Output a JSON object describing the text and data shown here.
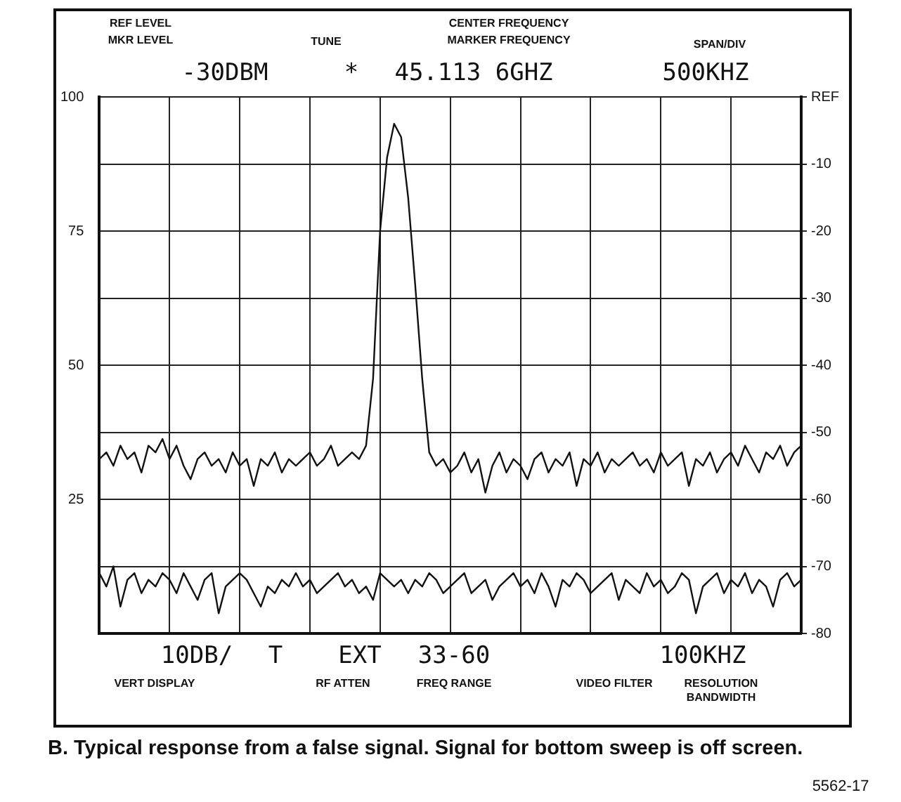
{
  "chart_data": {
    "type": "line",
    "categories": [
      null,
      null,
      null,
      null,
      null,
      null,
      null,
      null,
      null,
      null,
      null,
      null,
      null,
      null,
      null,
      null,
      null,
      null,
      null,
      null,
      null,
      null,
      null,
      null,
      null,
      null,
      null,
      null,
      null,
      null,
      null,
      null,
      null,
      null,
      null,
      null,
      null,
      null,
      null,
      null,
      null,
      null,
      null,
      null,
      null,
      null,
      null,
      null,
      null,
      null,
      null,
      null,
      null,
      null,
      null,
      null,
      null,
      null,
      null,
      null,
      null,
      null,
      null,
      null,
      null,
      null,
      null,
      null,
      null,
      null,
      null,
      null,
      null,
      null,
      null,
      null,
      null,
      null,
      null,
      null,
      null,
      null,
      null,
      null,
      null,
      null,
      null,
      null,
      null,
      null,
      null,
      null,
      null,
      null,
      null,
      null,
      null,
      null,
      null,
      null,
      null
    ],
    "series": [
      {
        "color": "#111111",
        "values": [
          -54,
          -53,
          -55,
          -52,
          -54,
          -53,
          -56,
          -52,
          -53,
          -51,
          -54,
          -52,
          -55,
          -57,
          -54,
          -53,
          -55,
          -54,
          -56,
          -53,
          -55,
          -54,
          -58,
          -54,
          -55,
          -53,
          -56,
          -54,
          -55,
          -54,
          -53,
          -55,
          -54,
          -52,
          -55,
          -54,
          -53,
          -54,
          -52,
          -42,
          -20,
          -9,
          -4,
          -6,
          -15,
          -28,
          -42,
          -53,
          -55,
          -54,
          -56,
          -55,
          -53,
          -56,
          -54,
          -59,
          -55,
          -53,
          -56,
          -54,
          -55,
          -57,
          -54,
          -53,
          -56,
          -54,
          -55,
          -53,
          -58,
          -54,
          -55,
          -53,
          -56,
          -54,
          -55,
          -54,
          -53,
          -55,
          -54,
          -56,
          -53,
          -55,
          -54,
          -53,
          -58,
          -54,
          -55,
          -53,
          -56,
          -54,
          -53,
          -55,
          -52,
          -54,
          -56,
          -53,
          -54,
          -52,
          -55,
          -53,
          -52
        ]
      },
      {
        "color": "#111111",
        "values": [
          -71,
          -73,
          -70,
          -76,
          -72,
          -71,
          -74,
          -72,
          -73,
          -71,
          -72,
          -74,
          -71,
          -73,
          -75,
          -72,
          -71,
          -77,
          -73,
          -72,
          -71,
          -72,
          -74,
          -76,
          -73,
          -74,
          -72,
          -73,
          -71,
          -73,
          -72,
          -74,
          -73,
          -72,
          -71,
          -73,
          -72,
          -74,
          -73,
          -75,
          -71,
          -72,
          -73,
          -72,
          -74,
          -72,
          -73,
          -71,
          -72,
          -74,
          -73,
          -72,
          -71,
          -74,
          -73,
          -72,
          -75,
          -73,
          -72,
          -71,
          -73,
          -72,
          -74,
          -71,
          -73,
          -76,
          -72,
          -73,
          -71,
          -72,
          -74,
          -73,
          -72,
          -71,
          -75,
          -72,
          -73,
          -74,
          -71,
          -73,
          -72,
          -74,
          -73,
          -71,
          -72,
          -77,
          -73,
          -72,
          -71,
          -74,
          -72,
          -73,
          -71,
          -74,
          -72,
          -73,
          -76,
          -72,
          -71,
          -73,
          -72
        ]
      }
    ],
    "ylim": [
      -80,
      0
    ],
    "yticks": [
      {
        "value": 0,
        "label": "REF"
      },
      -10,
      -20,
      -30,
      -40,
      -50,
      -60,
      -70,
      -80
    ],
    "y2lim": [
      0,
      100
    ],
    "y2ticks": [
      25,
      50,
      75,
      100
    ],
    "grid": true,
    "annotations": [
      "REF LEVEL",
      "MKR LEVEL",
      "TUNE",
      "CENTER FREQUENCY",
      "MARKER FREQUENCY",
      "SPAN/DIV",
      "-30DBM",
      "*",
      "45.113 6GHZ",
      "500KHZ",
      "10DB/",
      "T",
      "EXT",
      "33-60",
      "100KHZ",
      "VERT DISPLAY",
      "RF ATTEN",
      "FREQ RANGE",
      "VIDEO FILTER",
      "RESOLUTION BANDWIDTH",
      "B. Typical response from a false signal. Signal for bottom sweep is off screen.",
      "5562-17"
    ]
  }
}
